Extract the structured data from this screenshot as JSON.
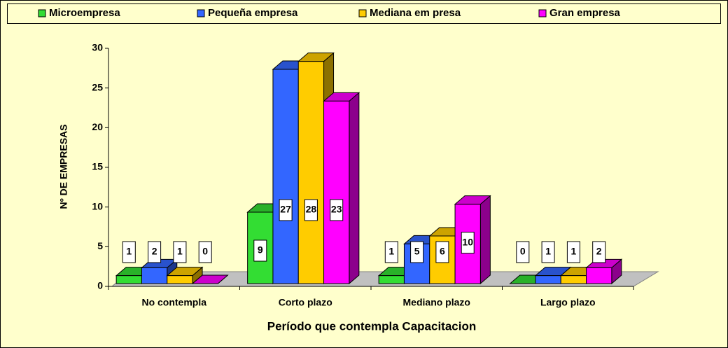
{
  "chart_data": {
    "type": "bar3d",
    "x_label": "Período que contempla Capacitacion",
    "y_label": "Nº DE EMPRESAS",
    "categories": [
      "No contempla",
      "Corto plazo",
      "Mediano plazo",
      "Largo plazo"
    ],
    "series": [
      {
        "name": "Microempresa",
        "color": "#33dd33",
        "values": [
          1,
          9,
          1,
          0
        ]
      },
      {
        "name": "Pequeña empresa",
        "color": "#3366ff",
        "values": [
          2,
          27,
          5,
          1
        ]
      },
      {
        "name": "Mediana em presa",
        "color": "#ffcc00",
        "values": [
          1,
          28,
          6,
          1
        ]
      },
      {
        "name": "Gran empresa",
        "color": "#ff00ff",
        "values": [
          0,
          23,
          10,
          2
        ]
      }
    ],
    "ylim": [
      0,
      30
    ],
    "yticks": [
      0,
      5,
      10,
      15,
      20,
      25,
      30
    ],
    "legend": "top"
  }
}
